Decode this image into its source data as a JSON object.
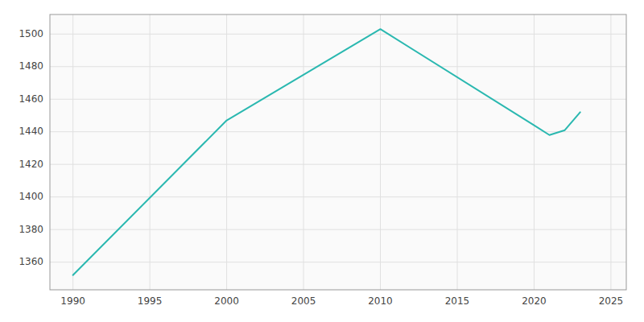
{
  "chart_data": {
    "type": "line",
    "x": [
      1990,
      2000,
      2010,
      2020,
      2021,
      2022,
      2023
    ],
    "values": [
      1352,
      1447,
      1503,
      1444,
      1438,
      1441,
      1452
    ],
    "color": "#2ab8b0",
    "xlim": [
      1988.5,
      2026
    ],
    "ylim": [
      1343,
      1512
    ],
    "xticks": [
      1990,
      1995,
      2000,
      2005,
      2010,
      2015,
      2020,
      2025
    ],
    "yticks": [
      1360,
      1380,
      1400,
      1420,
      1440,
      1460,
      1480,
      1500
    ],
    "grid": true
  }
}
